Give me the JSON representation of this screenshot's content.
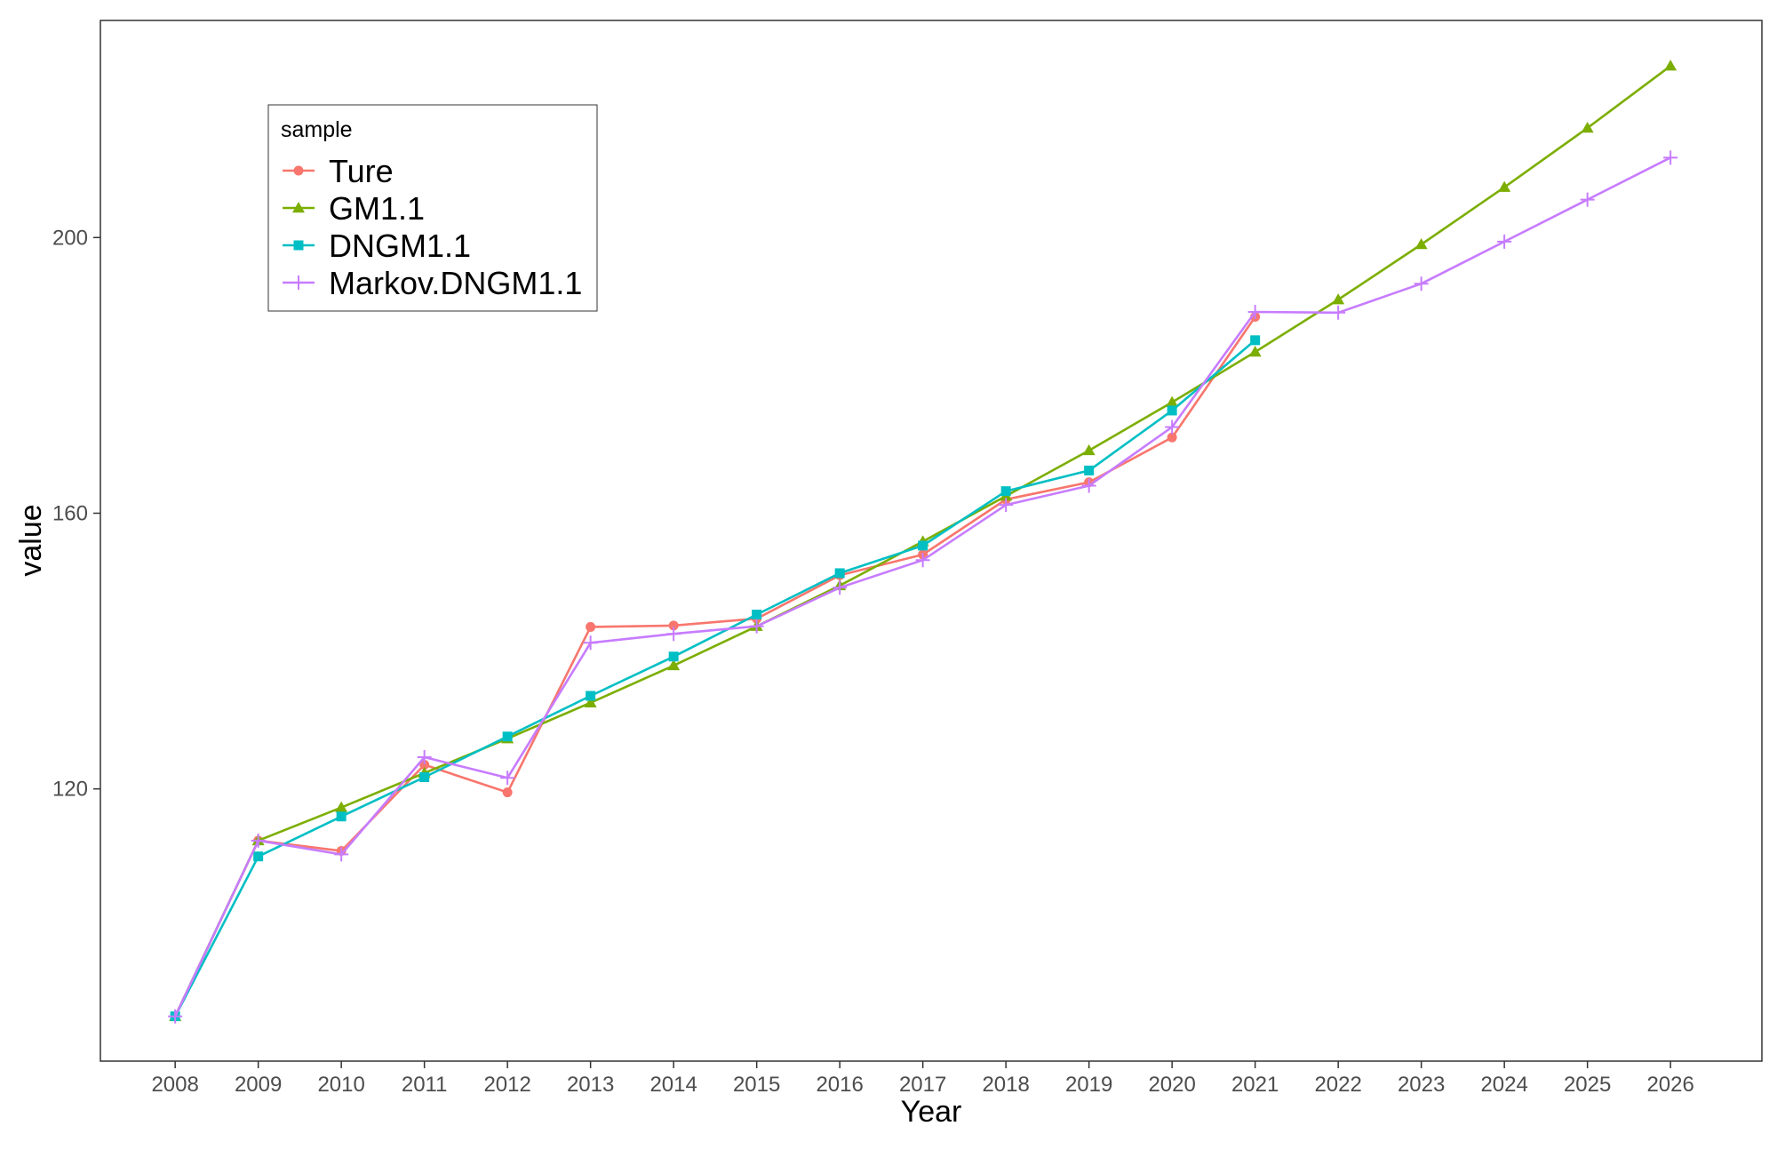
{
  "chart_data": {
    "type": "line",
    "xlabel": "Year",
    "ylabel": "value",
    "x": [
      2008,
      2009,
      2010,
      2011,
      2012,
      2013,
      2014,
      2015,
      2016,
      2017,
      2018,
      2019,
      2020,
      2021,
      2022,
      2023,
      2024,
      2025,
      2026
    ],
    "xlim": [
      2007.1,
      2027.1
    ],
    "ylim": [
      80.5,
      231.5
    ],
    "y_ticks": [
      120,
      160,
      200
    ],
    "grid": false,
    "legend": {
      "title": "sample",
      "position": "top-left"
    },
    "series": [
      {
        "name": "Ture",
        "color": "#F8766D",
        "marker": "circle",
        "values": [
          87,
          112.5,
          111,
          123.5,
          119.5,
          143.5,
          143.7,
          144.7,
          151,
          154,
          162,
          164.5,
          171,
          188.5,
          null,
          null,
          null,
          null,
          null
        ]
      },
      {
        "name": "GM1.1",
        "color": "#7CAE00",
        "marker": "triangle",
        "values": [
          87,
          112.5,
          117.3,
          122.3,
          127.3,
          132.5,
          137.9,
          143.6,
          149.5,
          155.9,
          162.5,
          169.1,
          176.1,
          183.4,
          191,
          199,
          207.3,
          215.9,
          224.9
        ]
      },
      {
        "name": "DNGM1.1",
        "color": "#00BFC4",
        "marker": "square",
        "values": [
          87,
          110.2,
          116,
          121.7,
          127.6,
          133.5,
          139.2,
          145.3,
          151.3,
          155.3,
          163.2,
          166.2,
          174.9,
          185.1,
          null,
          null,
          null,
          null,
          null
        ]
      },
      {
        "name": "Markov.DNGM1.1",
        "color": "#C77CFF",
        "marker": "plus",
        "values": [
          87,
          112.5,
          110.5,
          124.6,
          121.6,
          141.2,
          142.5,
          143.6,
          149.2,
          153.2,
          161.2,
          164,
          172.5,
          189.2,
          189.1,
          193.3,
          199.4,
          205.5,
          211.6
        ]
      }
    ]
  }
}
